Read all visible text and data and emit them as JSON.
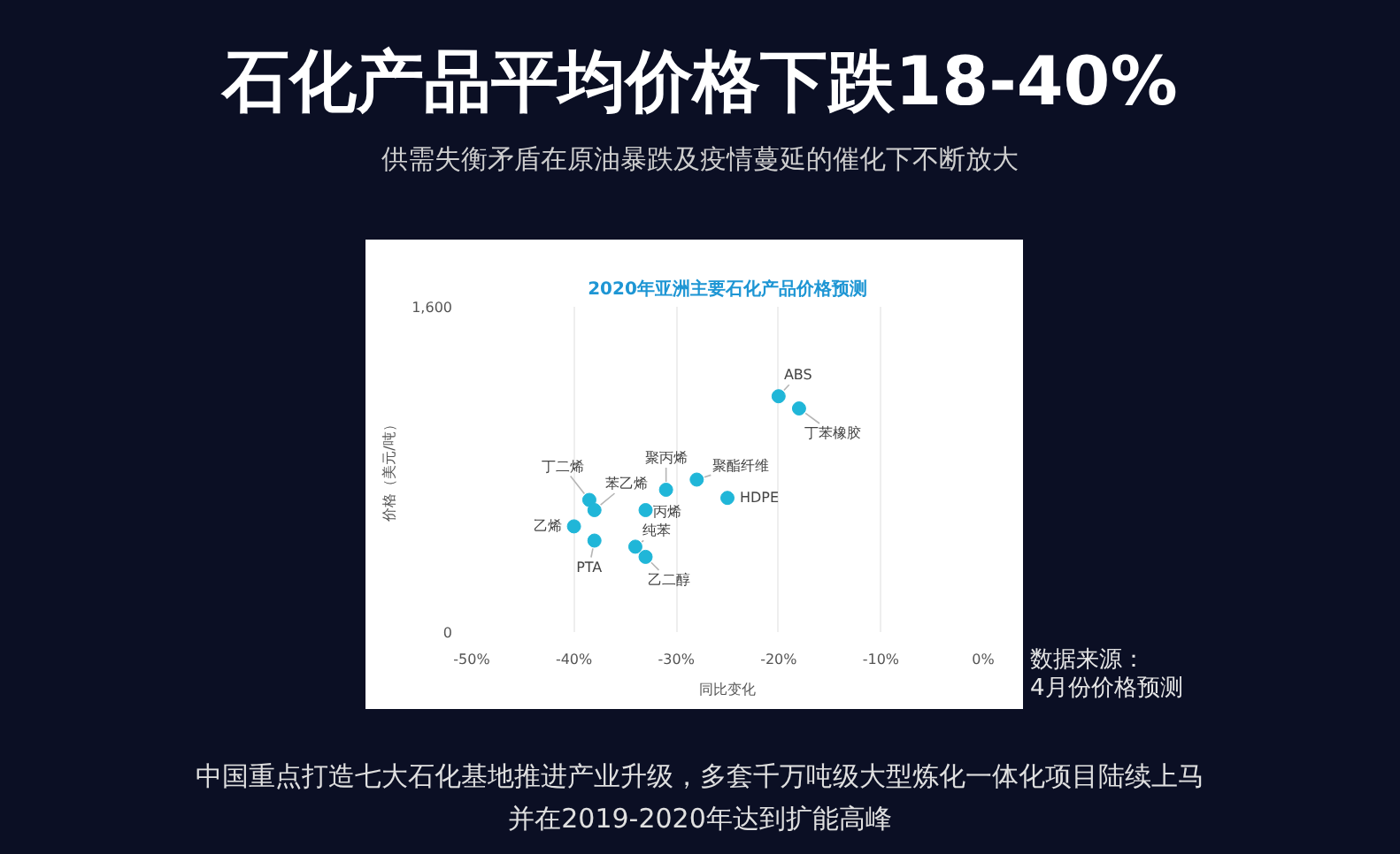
{
  "chart_data": {
    "type": "scatter",
    "title": "石化产品平均价格下跌18-40%",
    "subtitle": "供需失衡矛盾在原油暴跌及疫情蔓延的催化下不断放大",
    "xlabel": "同比变化",
    "ylabel": "价格（美元/吨）",
    "series": [
      {
        "color": "#20b6d8",
        "x": [
          -20,
          -18,
          -28,
          -31,
          -25,
          -38.5,
          -38,
          -33,
          -40,
          -38,
          -34,
          -33
        ],
        "values": [
          1160,
          1100,
          750,
          700,
          660,
          650,
          600,
          600,
          520,
          450,
          420,
          370
        ]
      }
    ],
    "xlim": [
      -50,
      0
    ],
    "ylim": [
      0,
      1600
    ],
    "xticks": [
      {
        "value": -50,
        "label": "-50%"
      },
      {
        "value": -40,
        "label": "-40%"
      },
      {
        "value": -30,
        "label": "-30%"
      },
      {
        "value": -20,
        "label": "-20%"
      },
      {
        "value": -10,
        "label": "-10%"
      },
      {
        "value": 0,
        "label": "0%"
      }
    ],
    "yticks": [
      0,
      {
        "value": 1600,
        "label": "1,600"
      }
    ],
    "grid": "x",
    "marker": "circle",
    "annotations": [
      "2020年亚洲主要石化产品价格预测",
      {
        "text": "ABS",
        "x": -20,
        "y": 1160
      },
      {
        "text": "丁苯橡胶",
        "x": -18,
        "y": 1100
      },
      {
        "text": "聚酯纤维",
        "x": -28,
        "y": 750
      },
      {
        "text": "聚丙烯",
        "x": -31,
        "y": 700
      },
      {
        "text": "HDPE",
        "x": -25,
        "y": 660
      },
      {
        "text": "丁二烯",
        "x": -38.5,
        "y": 650
      },
      {
        "text": "苯乙烯",
        "x": -38,
        "y": 600
      },
      {
        "text": "丙烯",
        "x": -33,
        "y": 600
      },
      {
        "text": "乙烯",
        "x": -40,
        "y": 520
      },
      {
        "text": "PTA",
        "x": -38,
        "y": 450
      },
      {
        "text": "纯苯",
        "x": -34,
        "y": 420
      },
      {
        "text": "乙二醇",
        "x": -33,
        "y": 370
      },
      "数据来源：",
      "4月份价格预测",
      "中国重点打造七大石化基地推进产业升级，多套千万吨级大型炼化一体化项目陆续上马",
      "并在2019-2020年达到扩能高峰"
    ]
  }
}
